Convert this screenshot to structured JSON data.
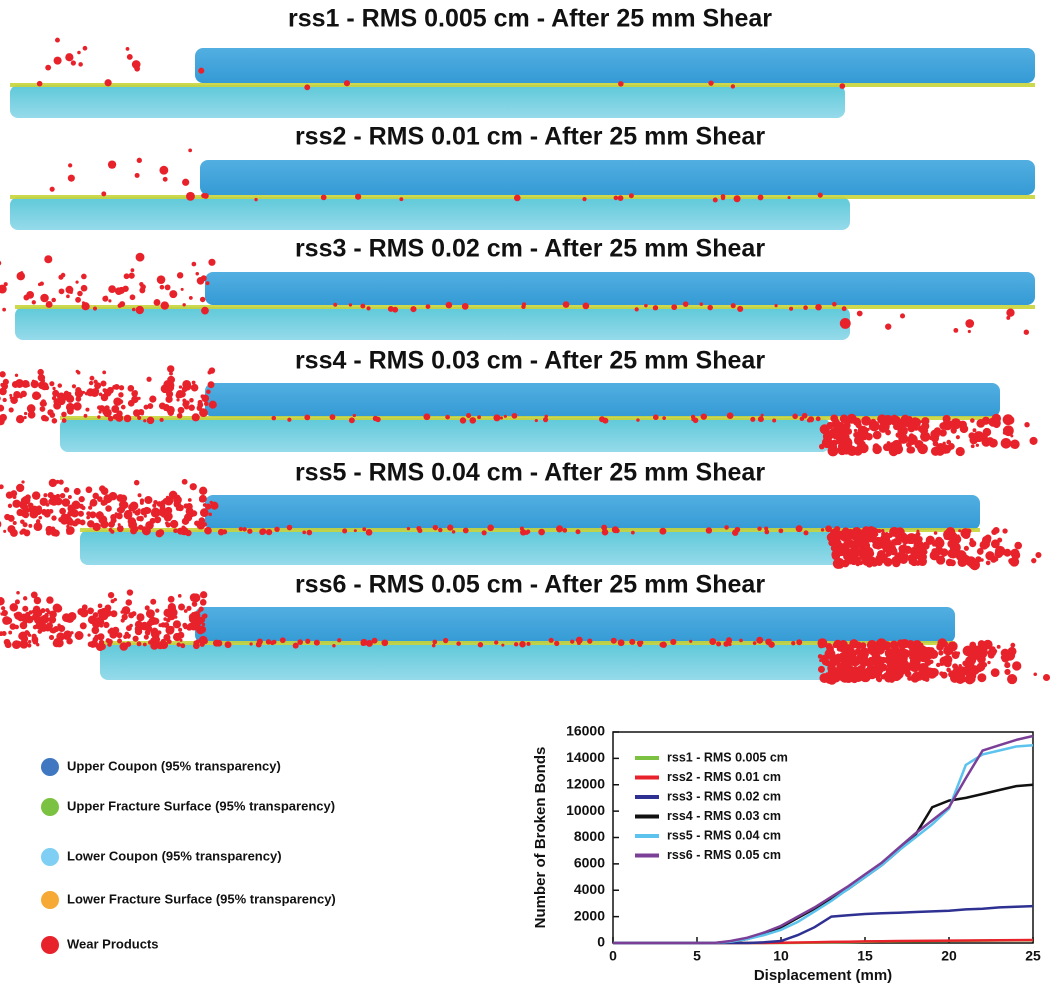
{
  "panels": [
    {
      "title": "rss1 - RMS 0.005 cm - After 25 mm Shear"
    },
    {
      "title": "rss2 - RMS 0.01 cm - After 25 mm Shear"
    },
    {
      "title": "rss3 - RMS 0.02 cm - After 25 mm Shear"
    },
    {
      "title": "rss4 - RMS 0.03 cm - After 25 mm Shear"
    },
    {
      "title": "rss5 - RMS 0.04 cm - After 25 mm Shear"
    },
    {
      "title": "rss6 - RMS 0.05 cm - After 25 mm Shear"
    }
  ],
  "key": [
    {
      "label": "Upper Coupon (95% transparency)",
      "color": "#3f78c0"
    },
    {
      "label": "Upper Fracture Surface (95% transparency)",
      "color": "#7cc242"
    },
    {
      "label": "Lower Coupon (95% transparency)",
      "color": "#7ecff3"
    },
    {
      "label": "Lower Fracture Surface (95% transparency)",
      "color": "#f6a934"
    },
    {
      "label": "Wear Products",
      "color": "#e8222b"
    }
  ],
  "chart_data": {
    "type": "line",
    "x_label": "Displacement (mm)",
    "y_label": "Number of Broken Bonds",
    "x": [
      0,
      5,
      6,
      7,
      8,
      9,
      10,
      11,
      12,
      13,
      14,
      15,
      16,
      17,
      18,
      19,
      20,
      21,
      22,
      23,
      24,
      25
    ],
    "series": [
      {
        "name": "rss1 - RMS 0.005 cm",
        "color": "#7cc242",
        "values": [
          0,
          0,
          0,
          0,
          0,
          0,
          0,
          10,
          30,
          50,
          70,
          90,
          110,
          120,
          140,
          150,
          160,
          170,
          180,
          190,
          200,
          200
        ]
      },
      {
        "name": "rss2 - RMS 0.01 cm",
        "color": "#e8222b",
        "values": [
          0,
          0,
          0,
          0,
          0,
          0,
          20,
          40,
          60,
          80,
          100,
          120,
          140,
          150,
          160,
          170,
          180,
          190,
          200,
          210,
          220,
          230
        ]
      },
      {
        "name": "rss3 - RMS 0.02 cm",
        "color": "#2e3192",
        "values": [
          0,
          0,
          0,
          0,
          0,
          50,
          150,
          600,
          1200,
          2000,
          2100,
          2200,
          2250,
          2300,
          2350,
          2400,
          2450,
          2550,
          2600,
          2700,
          2750,
          2800
        ]
      },
      {
        "name": "rss4 - RMS 0.03 cm",
        "color": "#111111",
        "values": [
          0,
          0,
          0,
          100,
          300,
          700,
          1200,
          1900,
          2600,
          3300,
          4100,
          5000,
          5900,
          7000,
          8200,
          10300,
          10800,
          11000,
          11300,
          11600,
          11900,
          12000
        ]
      },
      {
        "name": "rss5 - RMS 0.04 cm",
        "color": "#5bc3ee",
        "values": [
          0,
          0,
          0,
          100,
          300,
          600,
          1000,
          1600,
          2400,
          3200,
          4100,
          5000,
          5900,
          7000,
          8000,
          9000,
          10200,
          13500,
          14300,
          14600,
          14900,
          15000
        ]
      },
      {
        "name": "rss6 - RMS 0.05 cm",
        "color": "#7b3f98",
        "values": [
          0,
          0,
          0,
          150,
          400,
          800,
          1300,
          2000,
          2700,
          3500,
          4300,
          5200,
          6100,
          7200,
          8300,
          9300,
          10300,
          12500,
          14600,
          15000,
          15400,
          15700
        ]
      }
    ],
    "xlim": [
      0,
      25
    ],
    "ylim": [
      0,
      16000
    ],
    "xticks": [
      0,
      5,
      10,
      15,
      20,
      25
    ],
    "yticks": [
      0,
      2000,
      4000,
      6000,
      8000,
      10000,
      12000,
      14000,
      16000
    ],
    "grid": false,
    "legend": "upper-left"
  }
}
